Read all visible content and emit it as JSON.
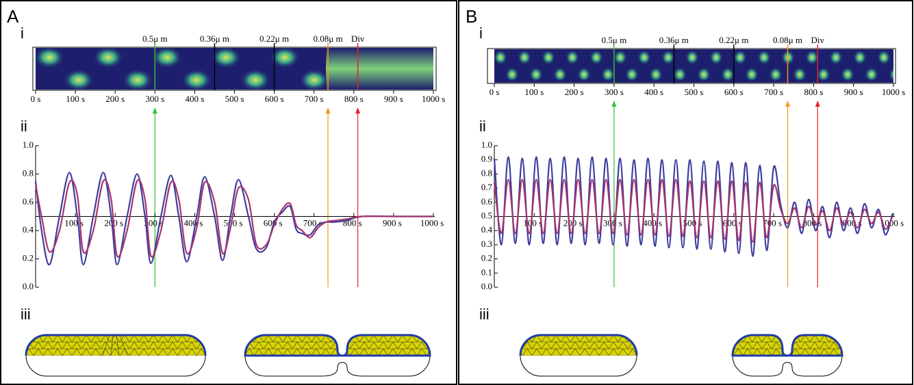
{
  "panels": [
    {
      "label": "A",
      "sublabels": [
        "i",
        "ii",
        "iii"
      ],
      "kymograph": {
        "xlim": [
          0,
          1000
        ],
        "xticks": [
          {
            "value": 0,
            "label": "0 s"
          },
          {
            "value": 100,
            "label": "100 s"
          },
          {
            "value": 200,
            "label": "200 s"
          },
          {
            "value": 300,
            "label": "300 s"
          },
          {
            "value": 400,
            "label": "400 s"
          },
          {
            "value": 500,
            "label": "500 s"
          },
          {
            "value": 600,
            "label": "600 s"
          },
          {
            "value": 700,
            "label": "700 s"
          },
          {
            "value": 800,
            "label": "800 s"
          },
          {
            "value": 900,
            "label": "900 s"
          },
          {
            "value": 1000,
            "label": "1000 s"
          }
        ],
        "markers": [
          {
            "value": 300,
            "label": "0.5μ m",
            "color": "#2ec12e"
          },
          {
            "value": 450,
            "label": "0.36μ m",
            "color": "#000000"
          },
          {
            "value": 600,
            "label": "0.22μ m",
            "color": "#000000"
          },
          {
            "value": 735,
            "label": "0.08μ m",
            "color": "#f7941d"
          },
          {
            "value": 810,
            "label": "Div",
            "color": "#e8202a"
          }
        ]
      }
    },
    {
      "label": "B",
      "sublabels": [
        "i",
        "ii",
        "iii"
      ],
      "kymograph": {
        "xlim": [
          0,
          1000
        ],
        "xticks": [
          {
            "value": 0,
            "label": "0 s"
          },
          {
            "value": 100,
            "label": "100 s"
          },
          {
            "value": 200,
            "label": "200 s"
          },
          {
            "value": 300,
            "label": "300 s"
          },
          {
            "value": 400,
            "label": "400 s"
          },
          {
            "value": 500,
            "label": "500 s"
          },
          {
            "value": 600,
            "label": "600 s"
          },
          {
            "value": 700,
            "label": "700 s"
          },
          {
            "value": 800,
            "label": "800 s"
          },
          {
            "value": 900,
            "label": "900 s"
          },
          {
            "value": 1000,
            "label": "1000 s"
          }
        ],
        "markers": [
          {
            "value": 300,
            "label": "0.5μ m",
            "color": "#2ec12e"
          },
          {
            "value": 450,
            "label": "0.36μ m",
            "color": "#000000"
          },
          {
            "value": 600,
            "label": "0.22μ m",
            "color": "#000000"
          },
          {
            "value": 735,
            "label": "0.08μ m",
            "color": "#f7941d"
          },
          {
            "value": 810,
            "label": "Div",
            "color": "#e8202a"
          }
        ]
      }
    }
  ],
  "chart_data": [
    {
      "type": "line",
      "xlim": [
        0,
        1000
      ],
      "ylim": [
        0,
        1
      ],
      "xticks": [
        {
          "value": 100,
          "label": "100 s"
        },
        {
          "value": 200,
          "label": "200 s"
        },
        {
          "value": 300,
          "label": "300 s"
        },
        {
          "value": 400,
          "label": "400 s"
        },
        {
          "value": 500,
          "label": "500 s"
        },
        {
          "value": 600,
          "label": "600 s"
        },
        {
          "value": 700,
          "label": "700 s"
        },
        {
          "value": 800,
          "label": "800 s"
        },
        {
          "value": 900,
          "label": "900 s"
        },
        {
          "value": 1000,
          "label": "1000 s"
        }
      ],
      "yticks": [
        {
          "value": 0,
          "label": "0.0"
        },
        0.2,
        0.4,
        0.6,
        0.8,
        {
          "value": 1,
          "label": "1.0"
        }
      ],
      "x_axis_at": 0.5,
      "x": [
        0,
        15,
        35,
        60,
        85,
        105,
        120,
        145,
        170,
        190,
        205,
        230,
        255,
        275,
        290,
        315,
        340,
        360,
        380,
        405,
        425,
        450,
        470,
        490,
        510,
        535,
        555,
        580,
        600,
        620,
        640,
        655,
        670,
        690,
        710,
        730,
        750,
        780,
        820,
        900,
        1000
      ],
      "series": [
        {
          "color": "#3d3d9f",
          "values": [
            0.75,
            0.4,
            0.16,
            0.5,
            0.81,
            0.5,
            0.16,
            0.5,
            0.81,
            0.5,
            0.16,
            0.5,
            0.8,
            0.5,
            0.17,
            0.5,
            0.79,
            0.5,
            0.18,
            0.5,
            0.78,
            0.5,
            0.19,
            0.5,
            0.76,
            0.5,
            0.27,
            0.28,
            0.46,
            0.53,
            0.57,
            0.41,
            0.38,
            0.37,
            0.44,
            0.46,
            0.46,
            0.47,
            0.5,
            0.5,
            0.5
          ]
        },
        {
          "color": "#a3346f",
          "values": [
            0.72,
            0.5,
            0.25,
            0.4,
            0.74,
            0.65,
            0.25,
            0.4,
            0.75,
            0.62,
            0.22,
            0.4,
            0.75,
            0.62,
            0.22,
            0.4,
            0.74,
            0.62,
            0.24,
            0.42,
            0.74,
            0.6,
            0.24,
            0.42,
            0.7,
            0.62,
            0.3,
            0.3,
            0.44,
            0.55,
            0.59,
            0.44,
            0.4,
            0.35,
            0.42,
            0.46,
            0.47,
            0.48,
            0.5,
            0.5,
            0.5
          ]
        }
      ]
    },
    {
      "type": "line",
      "xlim": [
        0,
        1000
      ],
      "ylim": [
        0,
        1
      ],
      "xticks": [
        {
          "value": 100,
          "label": "100 s"
        },
        {
          "value": 200,
          "label": "200 s"
        },
        {
          "value": 300,
          "label": "300 s"
        },
        {
          "value": 400,
          "label": "400 s"
        },
        {
          "value": 500,
          "label": "500 s"
        },
        {
          "value": 600,
          "label": "600 s"
        },
        {
          "value": 700,
          "label": "700 s"
        },
        {
          "value": 800,
          "label": "800 s"
        },
        {
          "value": 900,
          "label": "900 s"
        },
        {
          "value": 1000,
          "label": "1000 s"
        }
      ],
      "yticks": [
        {
          "value": 0,
          "label": "0.0"
        },
        0.1,
        0.2,
        0.3,
        0.4,
        0.5,
        0.6,
        0.7,
        0.8,
        0.9,
        {
          "value": 1,
          "label": "1.0"
        }
      ],
      "x_axis_at": 0.5,
      "x": [
        0,
        17.5,
        35,
        52.5,
        70,
        87.5,
        105,
        122.5,
        140,
        157.5,
        175,
        192.5,
        210,
        227.5,
        245,
        262.5,
        280,
        297.5,
        315,
        332.5,
        350,
        367.5,
        385,
        402.5,
        420,
        437.5,
        455,
        472.5,
        490,
        507.5,
        525,
        542.5,
        560,
        577.5,
        595,
        612.5,
        630,
        647.5,
        665,
        682.5,
        700,
        717.5,
        735,
        752.5,
        770,
        787.5,
        805,
        822.5,
        840,
        857.5,
        875,
        892.5,
        910,
        927.5,
        945,
        962.5,
        980,
        997.5
      ],
      "series": [
        {
          "color": "#3d3d9f",
          "values": [
            0.91,
            0.3,
            0.92,
            0.31,
            0.91,
            0.3,
            0.92,
            0.31,
            0.91,
            0.3,
            0.92,
            0.31,
            0.91,
            0.3,
            0.92,
            0.31,
            0.91,
            0.3,
            0.91,
            0.29,
            0.9,
            0.3,
            0.91,
            0.29,
            0.9,
            0.28,
            0.9,
            0.28,
            0.9,
            0.27,
            0.89,
            0.27,
            0.89,
            0.25,
            0.88,
            0.24,
            0.88,
            0.22,
            0.86,
            0.26,
            0.85,
            0.58,
            0.42,
            0.6,
            0.38,
            0.62,
            0.4,
            0.57,
            0.35,
            0.6,
            0.4,
            0.56,
            0.38,
            0.59,
            0.42,
            0.55,
            0.37,
            0.52
          ]
        },
        {
          "color": "#a3346f",
          "values": [
            0.74,
            0.38,
            0.76,
            0.38,
            0.76,
            0.38,
            0.76,
            0.38,
            0.76,
            0.38,
            0.76,
            0.38,
            0.76,
            0.38,
            0.76,
            0.38,
            0.76,
            0.38,
            0.76,
            0.37,
            0.76,
            0.37,
            0.76,
            0.37,
            0.76,
            0.36,
            0.76,
            0.36,
            0.75,
            0.35,
            0.75,
            0.35,
            0.75,
            0.34,
            0.75,
            0.33,
            0.74,
            0.32,
            0.74,
            0.35,
            0.72,
            0.55,
            0.45,
            0.56,
            0.42,
            0.57,
            0.44,
            0.54,
            0.4,
            0.56,
            0.44,
            0.53,
            0.42,
            0.55,
            0.45,
            0.53,
            0.41,
            0.5
          ]
        }
      ]
    }
  ]
}
